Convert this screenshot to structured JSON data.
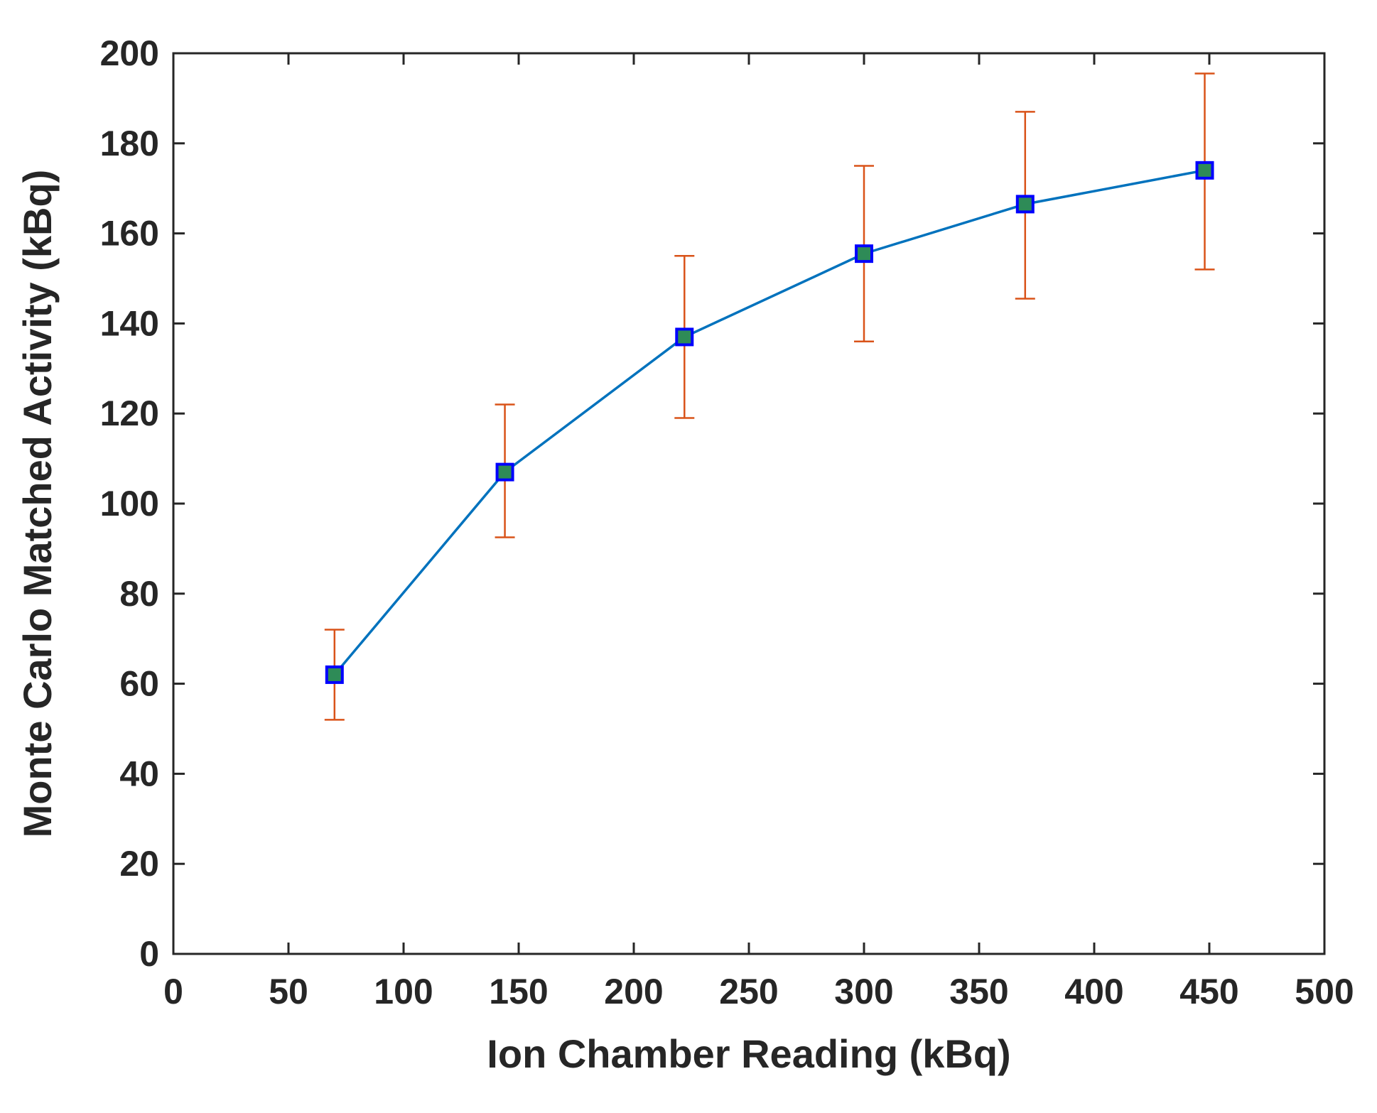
{
  "chart_data": {
    "type": "line",
    "title": "",
    "xlabel": "Ion Chamber Reading (kBq)",
    "ylabel": "Monte Carlo Matched Activity (kBq)",
    "xlim": [
      0,
      500
    ],
    "ylim": [
      0,
      200
    ],
    "xticks": [
      0,
      50,
      100,
      150,
      200,
      250,
      300,
      350,
      400,
      450,
      500
    ],
    "yticks": [
      0,
      20,
      40,
      60,
      80,
      100,
      120,
      140,
      160,
      180,
      200
    ],
    "xtick_labels": [
      "0",
      "50",
      "100",
      "150",
      "200",
      "250",
      "300",
      "350",
      "400",
      "450",
      "500"
    ],
    "ytick_labels": [
      "0",
      "20",
      "40",
      "60",
      "80",
      "100",
      "120",
      "140",
      "160",
      "180",
      "200"
    ],
    "grid": false,
    "legend": "none",
    "series": [
      {
        "x": [
          70,
          144,
          222,
          300,
          370,
          448
        ],
        "y": [
          62,
          107,
          137,
          155.5,
          166.5,
          174
        ],
        "err_low": [
          52,
          92.5,
          119,
          136,
          145.5,
          152
        ],
        "err_high": [
          72,
          122,
          155,
          175,
          187,
          195.5
        ],
        "line_color": "#0072BD",
        "marker": "square",
        "marker_edge_color": "#0000FF",
        "marker_face_color": "#2E8B57",
        "errorbar_color": "#D95319"
      }
    ]
  }
}
